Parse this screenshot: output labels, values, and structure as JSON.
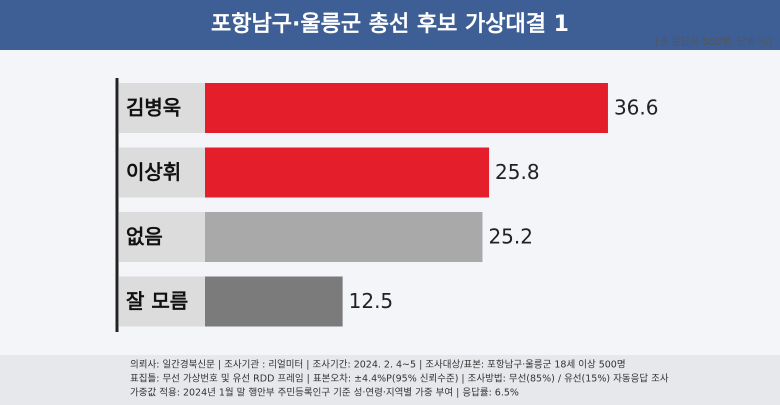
{
  "chart_data": {
    "type": "bar",
    "orientation": "horizontal",
    "title": "포항남구·울릉군 총선 후보 가상대결 1",
    "subtitle": "[총 응답자 500명, 단위 %]",
    "categories": [
      "김병욱",
      "이상휘",
      "없음",
      "잘 모름"
    ],
    "values": [
      36.6,
      25.8,
      25.2,
      12.5
    ],
    "colors": [
      "#e41e2b",
      "#e41e2b",
      "#a9a9a9",
      "#7b7b7b"
    ],
    "notes": [
      "의뢰사: 일간경북신문 | 조사기관 : 리얼미터 | 조사기간: 2024. 2. 4~5 | 조사대상/표본: 포항남구·울릉군 18세 이상 500명",
      "표집틀: 무선 가상번호 및 유선 RDD 프레임 | 표본오차: ±4.4%P(95% 신뢰수준) | 조사방법: 무선(85%) / 유선(15%) 자동응답 조사",
      "가중값 적용: 2024년 1월 말 행안부 주민등록인구 기준 성·연령·지역별 가중 부여 | 응답률: 6.5%"
    ]
  }
}
